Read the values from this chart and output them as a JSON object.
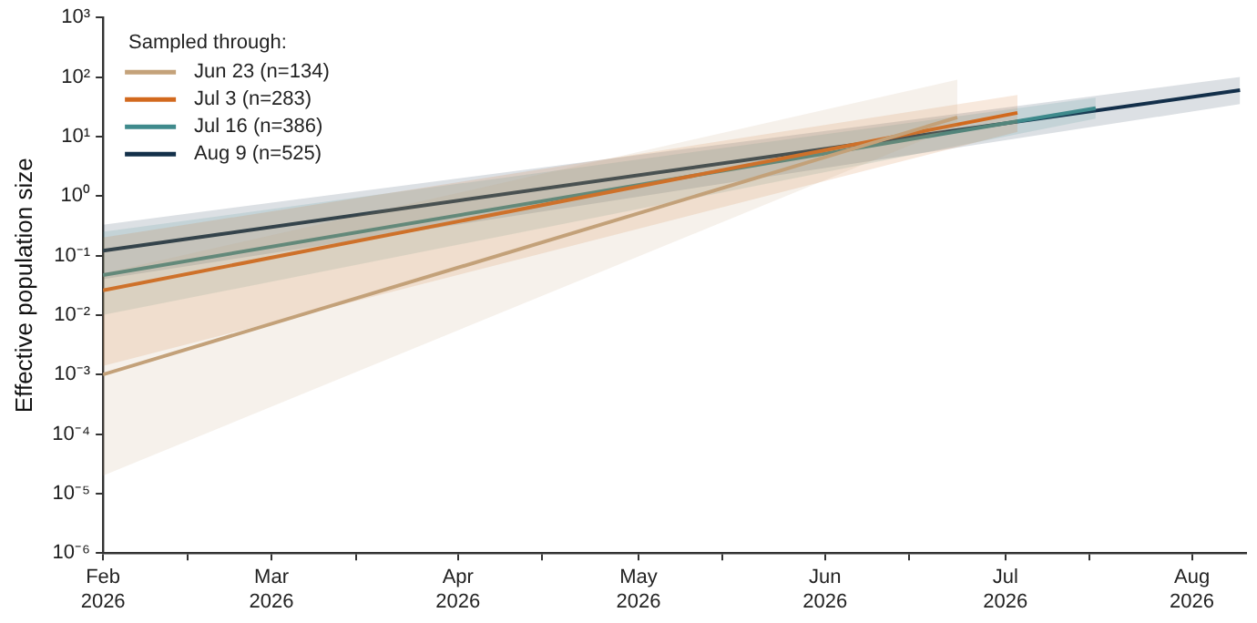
{
  "chart_data": {
    "type": "line",
    "ylabel": "Effective population size",
    "legend_title": "Sampled through:",
    "legend": "top left",
    "grid": false,
    "log": "y",
    "line_style": "solid",
    "marker": "none",
    "xlim": [
      "2026-02-01",
      "2026-08-10"
    ],
    "xticks": [
      {
        "value": "2026-02-01",
        "label": "Feb 2026"
      },
      {
        "value": "2026-02-15",
        "label": null
      },
      {
        "value": "2026-03-01",
        "label": "Mar 2026"
      },
      {
        "value": "2026-03-15",
        "label": null
      },
      {
        "value": "2026-04-01",
        "label": "Apr 2026"
      },
      {
        "value": "2026-04-15",
        "label": null
      },
      {
        "value": "2026-05-01",
        "label": "May 2026"
      },
      {
        "value": "2026-05-15",
        "label": null
      },
      {
        "value": "2026-06-01",
        "label": "Jun 2026"
      },
      {
        "value": "2026-06-15",
        "label": null
      },
      {
        "value": "2026-07-01",
        "label": "Jul 2026"
      },
      {
        "value": "2026-07-15",
        "label": null
      },
      {
        "value": "2026-08-01",
        "label": "Aug 2026"
      }
    ],
    "ylim": [
      1e-06,
      1000
    ],
    "yticks": [
      {
        "value": 1e-06,
        "label": "10⁻⁶"
      },
      {
        "value": 1e-05,
        "label": "10⁻⁵"
      },
      {
        "value": 0.0001,
        "label": "10⁻⁴"
      },
      {
        "value": 0.001,
        "label": "10⁻³"
      },
      {
        "value": 0.01,
        "label": "10⁻²"
      },
      {
        "value": 0.1,
        "label": "10⁻¹"
      },
      {
        "value": 1,
        "label": "10⁰"
      },
      {
        "value": 10,
        "label": "10¹"
      },
      {
        "value": 100,
        "label": "10²"
      },
      {
        "value": 1000,
        "label": "10³"
      }
    ],
    "series": [
      {
        "name": "Jun 23 (n=134)",
        "color": "#c4a27a",
        "x": [
          "2026-02-01",
          "2026-06-23"
        ],
        "values": [
          0.001,
          21
        ],
        "lower": [
          2e-05,
          15
        ],
        "upper": [
          0.05,
          90
        ]
      },
      {
        "name": "Jul 3 (n=283)",
        "color": "#d2691e",
        "x": [
          "2026-02-01",
          "2026-07-03"
        ],
        "values": [
          0.026,
          25
        ],
        "lower": [
          0.0014,
          12
        ],
        "upper": [
          0.2,
          50
        ]
      },
      {
        "name": "Jul 16 (n=386)",
        "color": "#3f8a8c",
        "x": [
          "2026-02-01",
          "2026-07-16"
        ],
        "values": [
          0.047,
          30
        ],
        "lower": [
          0.01,
          20
        ],
        "upper": [
          0.25,
          45
        ]
      },
      {
        "name": "Aug 9 (n=525)",
        "color": "#13304a",
        "x": [
          "2026-02-01",
          "2026-08-09"
        ],
        "values": [
          0.12,
          60
        ],
        "lower": [
          0.04,
          35
        ],
        "upper": [
          0.33,
          100
        ]
      }
    ]
  }
}
